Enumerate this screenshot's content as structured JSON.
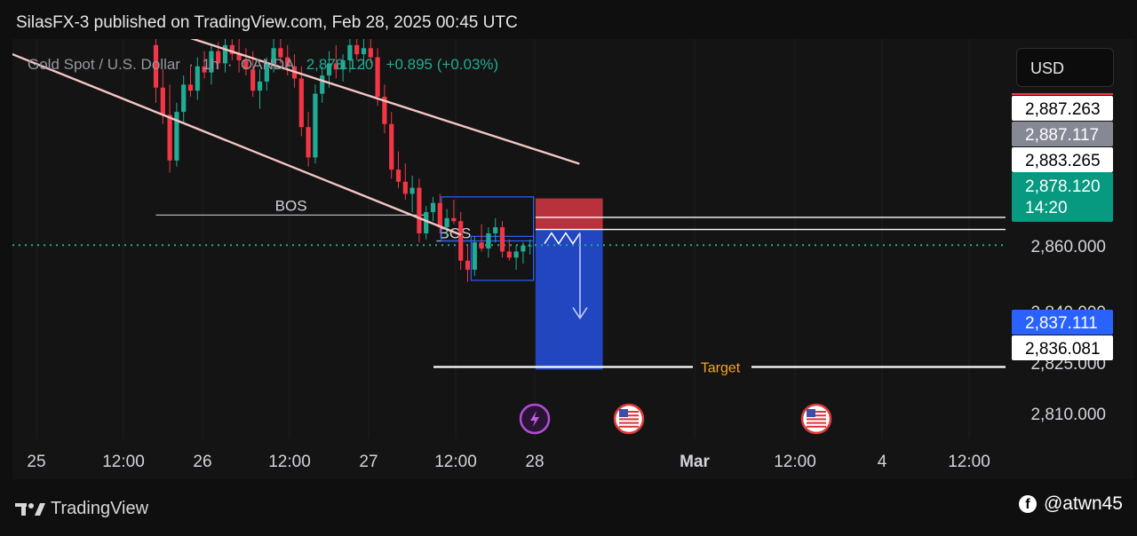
{
  "header": {
    "publisher_line": "SilasFX-3 published on TradingView.com, Feb 28, 2025 00:45 UTC"
  },
  "symbol_bar": {
    "name": "Gold Spot / U.S. Dollar",
    "interval": "1h",
    "broker": "OANDA",
    "last": "2,878.120",
    "change": "+0.895 (+0.03%)"
  },
  "currency_button": "USD",
  "footer": {
    "brand": "TradingView",
    "user": "@atwn45"
  },
  "colors": {
    "bull": "#22ab94",
    "bear": "#f23645",
    "trendline": "#f4c7c3",
    "stop_zone": "#c2333d",
    "target_zone": "#2349c8",
    "accent_blue": "#2962ff"
  },
  "chart_data": {
    "type": "candlestick",
    "symbol": "Gold Spot / U.S. Dollar",
    "interval": "1h",
    "x_ticks": [
      "25",
      "12:00",
      "26",
      "12:00",
      "27",
      "12:00",
      "28",
      "Mar",
      "12:00",
      "4",
      "12:00"
    ],
    "y_ticks": [
      "2,810.000",
      "2,825.000",
      "2,840.000",
      "2,860.000"
    ],
    "ylim": [
      2801,
      2946
    ],
    "price_labels": [
      {
        "value": "2,887.263",
        "style": "white"
      },
      {
        "value": "2,887.117",
        "style": "gray"
      },
      {
        "value": "2,883.265",
        "style": "white"
      },
      {
        "value": "2,878.120",
        "sub": "14:20",
        "style": "green"
      },
      {
        "value": "2,837.111",
        "style": "blue"
      },
      {
        "value": "2,836.081",
        "style": "white"
      }
    ],
    "annotations": [
      {
        "type": "text",
        "text": "BOS"
      },
      {
        "type": "text",
        "text": "BOS"
      },
      {
        "type": "text",
        "text": "Target"
      }
    ],
    "candles": [
      [
        2944,
        2947,
        2925,
        2930
      ],
      [
        2930,
        2936,
        2918,
        2921
      ],
      [
        2921,
        2931,
        2902,
        2906
      ],
      [
        2906,
        2925,
        2904,
        2922
      ],
      [
        2922,
        2934,
        2918,
        2931
      ],
      [
        2931,
        2937,
        2927,
        2929
      ],
      [
        2929,
        2940,
        2926,
        2937
      ],
      [
        2937,
        2942,
        2933,
        2935
      ],
      [
        2935,
        2944,
        2931,
        2942
      ],
      [
        2942,
        2945,
        2936,
        2938
      ],
      [
        2938,
        2947,
        2935,
        2944
      ],
      [
        2944,
        2947,
        2939,
        2941
      ],
      [
        2941,
        2946,
        2935,
        2939
      ],
      [
        2939,
        2943,
        2934,
        2936
      ],
      [
        2936,
        2942,
        2927,
        2929
      ],
      [
        2929,
        2936,
        2923,
        2932
      ],
      [
        2932,
        2940,
        2929,
        2938
      ],
      [
        2938,
        2946,
        2935,
        2943
      ],
      [
        2943,
        2948,
        2938,
        2940
      ],
      [
        2940,
        2944,
        2934,
        2937
      ],
      [
        2937,
        2941,
        2930,
        2933
      ],
      [
        2933,
        2937,
        2914,
        2917
      ],
      [
        2917,
        2922,
        2904,
        2907
      ],
      [
        2907,
        2931,
        2905,
        2928
      ],
      [
        2928,
        2937,
        2925,
        2934
      ],
      [
        2934,
        2942,
        2930,
        2938
      ],
      [
        2938,
        2944,
        2933,
        2936
      ],
      [
        2936,
        2941,
        2932,
        2939
      ],
      [
        2939,
        2947,
        2935,
        2944
      ],
      [
        2944,
        2949,
        2939,
        2941
      ],
      [
        2941,
        2946,
        2936,
        2943
      ],
      [
        2943,
        2948,
        2938,
        2940
      ],
      [
        2940,
        2943,
        2924,
        2927
      ],
      [
        2927,
        2931,
        2915,
        2918
      ],
      [
        2918,
        2922,
        2900,
        2903
      ],
      [
        2903,
        2909,
        2897,
        2899
      ],
      [
        2899,
        2905,
        2893,
        2895
      ],
      [
        2895,
        2901,
        2889,
        2897
      ],
      [
        2897,
        2900,
        2879,
        2882
      ],
      [
        2882,
        2891,
        2880,
        2889
      ],
      [
        2889,
        2894,
        2886,
        2892
      ],
      [
        2892,
        2895,
        2882,
        2884
      ],
      [
        2884,
        2890,
        2881,
        2887
      ],
      [
        2887,
        2893,
        2885,
        2886
      ],
      [
        2886,
        2889,
        2870,
        2873
      ],
      [
        2873,
        2878,
        2866,
        2870
      ],
      [
        2870,
        2881,
        2868,
        2879
      ],
      [
        2879,
        2885,
        2876,
        2877
      ],
      [
        2877,
        2884,
        2874,
        2882
      ],
      [
        2882,
        2887,
        2879,
        2884
      ],
      [
        2884,
        2886,
        2874,
        2876
      ],
      [
        2876,
        2880,
        2873,
        2874
      ],
      [
        2874,
        2878,
        2870,
        2876
      ],
      [
        2876,
        2879,
        2872,
        2878
      ],
      [
        2878,
        2880,
        2875,
        2878
      ]
    ],
    "trendlines": [
      {
        "from": [
          0,
          2950
        ],
        "to": [
          74.4,
          2881.6
        ]
      },
      {
        "from": [
          30.5,
          2950
        ],
        "to": [
          91.5,
          2905
        ]
      }
    ],
    "position": {
      "side": "short",
      "entry": 2883.265,
      "stop": 2893.5,
      "target": 2837.111
    }
  }
}
